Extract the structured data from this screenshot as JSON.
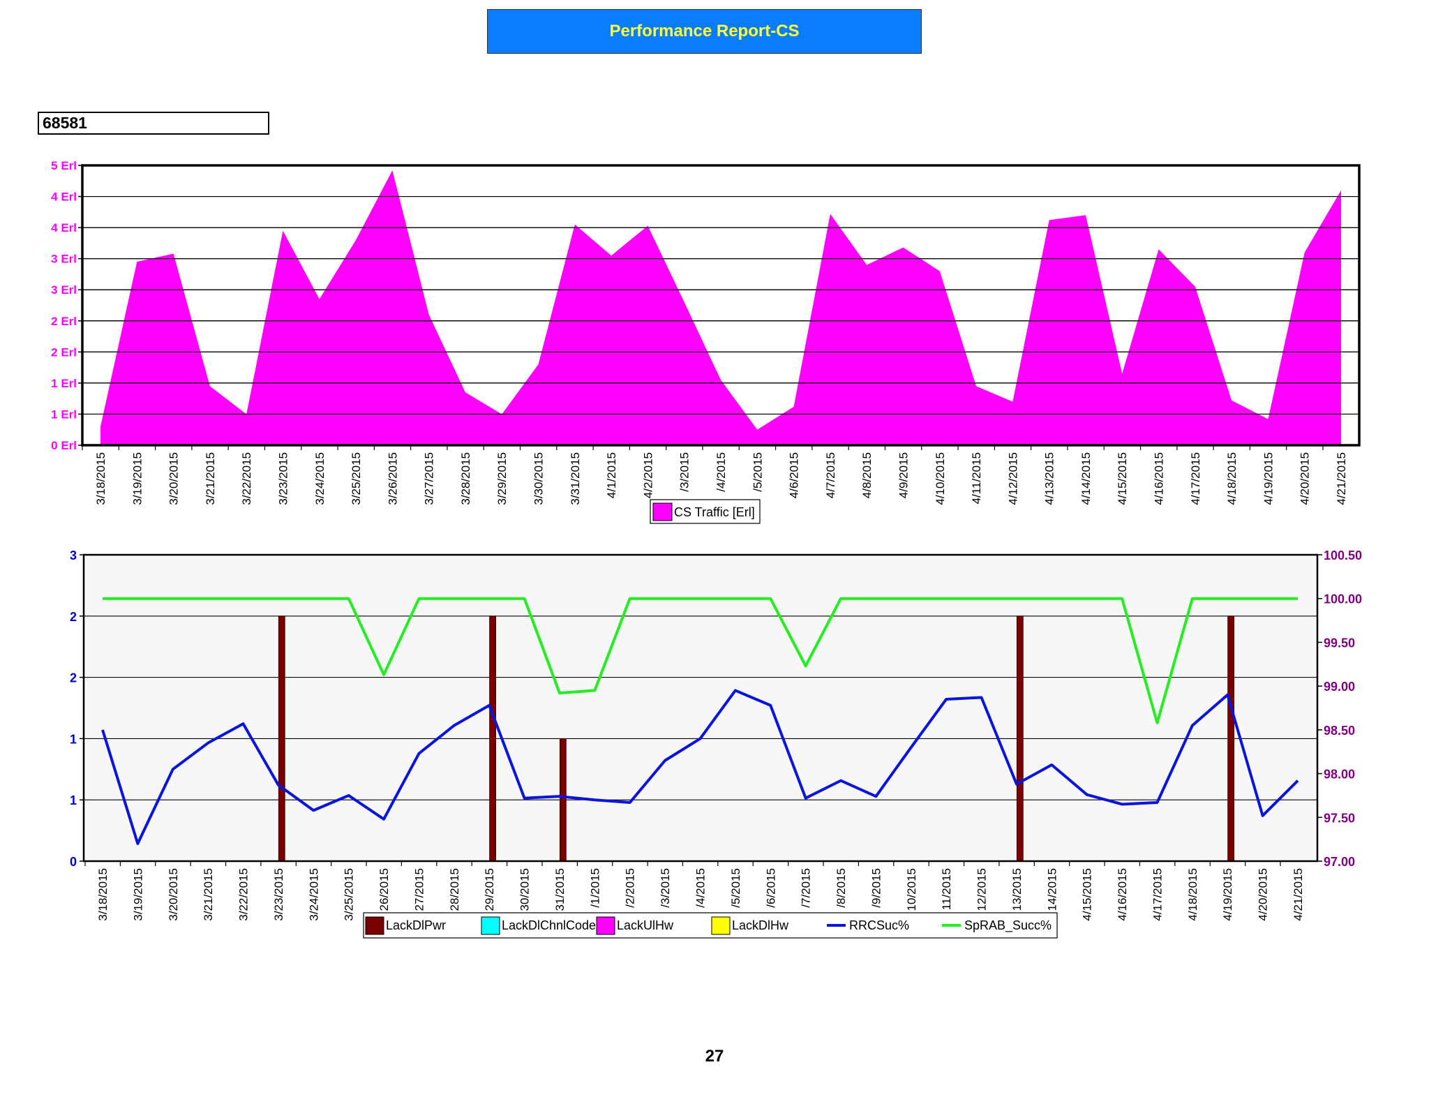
{
  "header": {
    "title": "Performance Report-CS",
    "cell_id": "68581"
  },
  "footer": {
    "page_number": "27"
  },
  "colors": {
    "traffic": "#ff00ff",
    "lack_dl_pwr": "#7a0000",
    "lack_dl_chnl_code": "#00ffff",
    "lack_ul_hw": "#ff00ff",
    "lack_dl_hw": "#ffff00",
    "rrc_suc": "#0a14dc",
    "sprab_succ": "#22ee22",
    "left_axis_top": "#ff00ff",
    "left_axis_bottom": "#0000cc",
    "right_axis_bottom": "#800080",
    "title_bg": "#0a7dff",
    "title_text": "#ffff33"
  },
  "chart_data": [
    {
      "type": "area",
      "x": [
        "3/18/2015",
        "3/19/2015",
        "3/20/2015",
        "3/21/2015",
        "3/22/2015",
        "3/23/2015",
        "3/24/2015",
        "3/25/2015",
        "3/26/2015",
        "3/27/2015",
        "3/28/2015",
        "3/29/2015",
        "3/30/2015",
        "3/31/2015",
        "4/1/2015",
        "4/2/2015",
        "4/3/2015",
        "4/4/2015",
        "4/5/2015",
        "4/6/2015",
        "4/7/2015",
        "4/8/2015",
        "4/9/2015",
        "4/10/2015",
        "4/11/2015",
        "4/12/2015",
        "4/13/2015",
        "4/14/2015",
        "4/15/2015",
        "4/16/2015",
        "4/17/2015",
        "4/18/2015",
        "4/19/2015",
        "4/20/2015",
        "4/21/2015"
      ],
      "x_tick_labels": [
        "3/18/2015",
        "3/19/2015",
        "3/20/2015",
        "3/21/2015",
        "3/22/2015",
        "3/23/2015",
        "3/24/2015",
        "3/25/2015",
        "3/26/2015",
        "3/27/2015",
        "3/28/2015",
        "3/29/2015",
        "3/30/2015",
        "3/31/2015",
        "4/1/2015",
        "4/2/2015",
        "/3/2015",
        "/4/2015",
        "/5/2015",
        "4/6/2015",
        "4/7/2015",
        "4/8/2015",
        "4/9/2015",
        "4/10/2015",
        "4/11/2015",
        "4/12/2015",
        "4/13/2015",
        "4/14/2015",
        "4/15/2015",
        "4/16/2015",
        "4/17/2015",
        "4/18/2015",
        "4/19/2015",
        "4/20/2015",
        "4/21/2015"
      ],
      "series": [
        {
          "name": "CS Traffic [Erl]",
          "values": [
            0.3,
            2.95,
            3.08,
            0.95,
            0.5,
            3.45,
            2.35,
            3.3,
            4.42,
            2.1,
            0.85,
            0.5,
            1.3,
            3.55,
            3.05,
            3.53,
            2.3,
            1.05,
            0.25,
            0.62,
            3.72,
            2.9,
            3.18,
            2.8,
            0.95,
            0.7,
            3.62,
            3.7,
            1.15,
            3.15,
            2.55,
            0.72,
            0.42,
            3.1,
            4.1
          ]
        }
      ],
      "ylim": [
        0,
        4.5
      ],
      "y_ticks": [
        0,
        0.5,
        1,
        1.5,
        2,
        2.5,
        3,
        3.5,
        4,
        4.5
      ],
      "y_tick_labels": [
        "0 Erl",
        "1 Erl",
        "1 Erl",
        "2 Erl",
        "2 Erl",
        "3 Erl",
        "3 Erl",
        "4 Erl",
        "4 Erl",
        "5 Erl"
      ],
      "legend": "bottom-center",
      "grid": true
    },
    {
      "type": "bar",
      "x": [
        "3/18/2015",
        "3/19/2015",
        "3/20/2015",
        "3/21/2015",
        "3/22/2015",
        "3/23/2015",
        "3/24/2015",
        "3/25/2015",
        "3/26/2015",
        "3/27/2015",
        "3/28/2015",
        "3/29/2015",
        "3/30/2015",
        "3/31/2015",
        "4/1/2015",
        "4/2/2015",
        "4/3/2015",
        "4/4/2015",
        "4/5/2015",
        "4/6/2015",
        "4/7/2015",
        "4/8/2015",
        "4/9/2015",
        "4/10/2015",
        "4/11/2015",
        "4/12/2015",
        "4/13/2015",
        "4/14/2015",
        "4/15/2015",
        "4/16/2015",
        "4/17/2015",
        "4/18/2015",
        "4/19/2015",
        "4/20/2015",
        "4/21/2015"
      ],
      "x_tick_labels": [
        "3/18/2015",
        "3/19/2015",
        "3/20/2015",
        "3/21/2015",
        "3/22/2015",
        "3/23/2015",
        "3/24/2015",
        "3/25/2015",
        "26/2015",
        "27/2015",
        "28/2015",
        "29/2015",
        "30/2015",
        "31/2015",
        "/1/2015",
        "/2/2015",
        "/3/2015",
        "/4/2015",
        "/5/2015",
        "/6/2015",
        "/7/2015",
        "/8/2015",
        "/9/2015",
        "10/2015",
        "11/2015",
        "12/2015",
        "13/2015",
        "14/2015",
        "4/15/2015",
        "4/16/2015",
        "4/17/2015",
        "4/18/2015",
        "4/19/2015",
        "4/20/2015",
        "4/21/2015"
      ],
      "series": [
        {
          "name": "LackDlPwr",
          "type": "bar",
          "axis": "left",
          "values": [
            0,
            0,
            0,
            0,
            0,
            0,
            2,
            0,
            0,
            0,
            0,
            0,
            2,
            0,
            1,
            0,
            0,
            0,
            0,
            0,
            0,
            0,
            0,
            0,
            0,
            0,
            0,
            2,
            0,
            0,
            0,
            0,
            0,
            2,
            0
          ]
        },
        {
          "name": "LackDlChnlCode",
          "type": "bar",
          "axis": "left",
          "values": [
            0,
            0,
            0,
            0,
            0,
            0,
            0,
            0,
            0,
            0,
            0,
            0,
            0,
            0,
            0,
            0,
            0,
            0,
            0,
            0,
            0,
            0,
            0,
            0,
            0,
            0,
            0,
            0,
            0,
            0,
            0,
            0,
            0,
            0,
            0
          ]
        },
        {
          "name": "LackUlHw",
          "type": "bar",
          "axis": "left",
          "values": [
            0,
            0,
            0,
            0,
            0,
            0,
            0,
            0,
            0,
            0,
            0,
            0,
            0,
            0,
            0,
            0,
            0,
            0,
            0,
            0,
            0,
            0,
            0,
            0,
            0,
            0,
            0,
            0,
            0,
            0,
            0,
            0,
            0,
            0,
            0
          ]
        },
        {
          "name": "LackDlHw",
          "type": "bar",
          "axis": "left",
          "values": [
            0,
            0,
            0,
            0,
            0,
            0,
            0,
            0,
            0,
            0,
            0,
            0,
            0,
            0,
            0,
            0,
            0,
            0,
            0,
            0,
            0,
            0,
            0,
            0,
            0,
            0,
            0,
            0,
            0,
            0,
            0,
            0,
            0,
            0,
            0
          ]
        },
        {
          "name": "RRCSuc%",
          "type": "line",
          "axis": "right",
          "values": [
            98.5,
            97.2,
            98.05,
            98.35,
            98.57,
            97.87,
            97.58,
            97.75,
            97.48,
            98.23,
            98.55,
            98.78,
            97.72,
            97.74,
            97.7,
            97.67,
            98.15,
            98.4,
            98.95,
            98.78,
            97.72,
            97.92,
            97.74,
            98.3,
            98.85,
            98.87,
            97.88,
            98.1,
            97.76,
            97.65,
            97.67,
            98.55,
            98.9,
            97.52,
            97.92
          ]
        },
        {
          "name": "SpRAB_Succ%",
          "type": "line",
          "axis": "right",
          "values": [
            100,
            100,
            100,
            100,
            100,
            100,
            100,
            100,
            99.13,
            100,
            100,
            100,
            100,
            98.92,
            98.95,
            100,
            100,
            100,
            100,
            100,
            99.23,
            100,
            100,
            100,
            100,
            100,
            100,
            100,
            100,
            100,
            98.58,
            100,
            100,
            100,
            100
          ]
        }
      ],
      "ylim_left": [
        0,
        2.5
      ],
      "y_ticks_left": [
        0,
        0.5,
        1,
        1.5,
        2,
        2.5
      ],
      "y_tick_labels_left": [
        "0",
        "1",
        "1",
        "2",
        "2",
        "3"
      ],
      "ylim_right": [
        97,
        100.5
      ],
      "y_ticks_right": [
        97,
        97.5,
        98,
        98.5,
        99,
        99.5,
        100,
        100.5
      ],
      "y_tick_labels_right": [
        "97.00",
        "97.50",
        "98.00",
        "98.50",
        "99.00",
        "99.50",
        "100.00",
        "100.50"
      ],
      "legend": "bottom-center",
      "grid": true
    }
  ]
}
